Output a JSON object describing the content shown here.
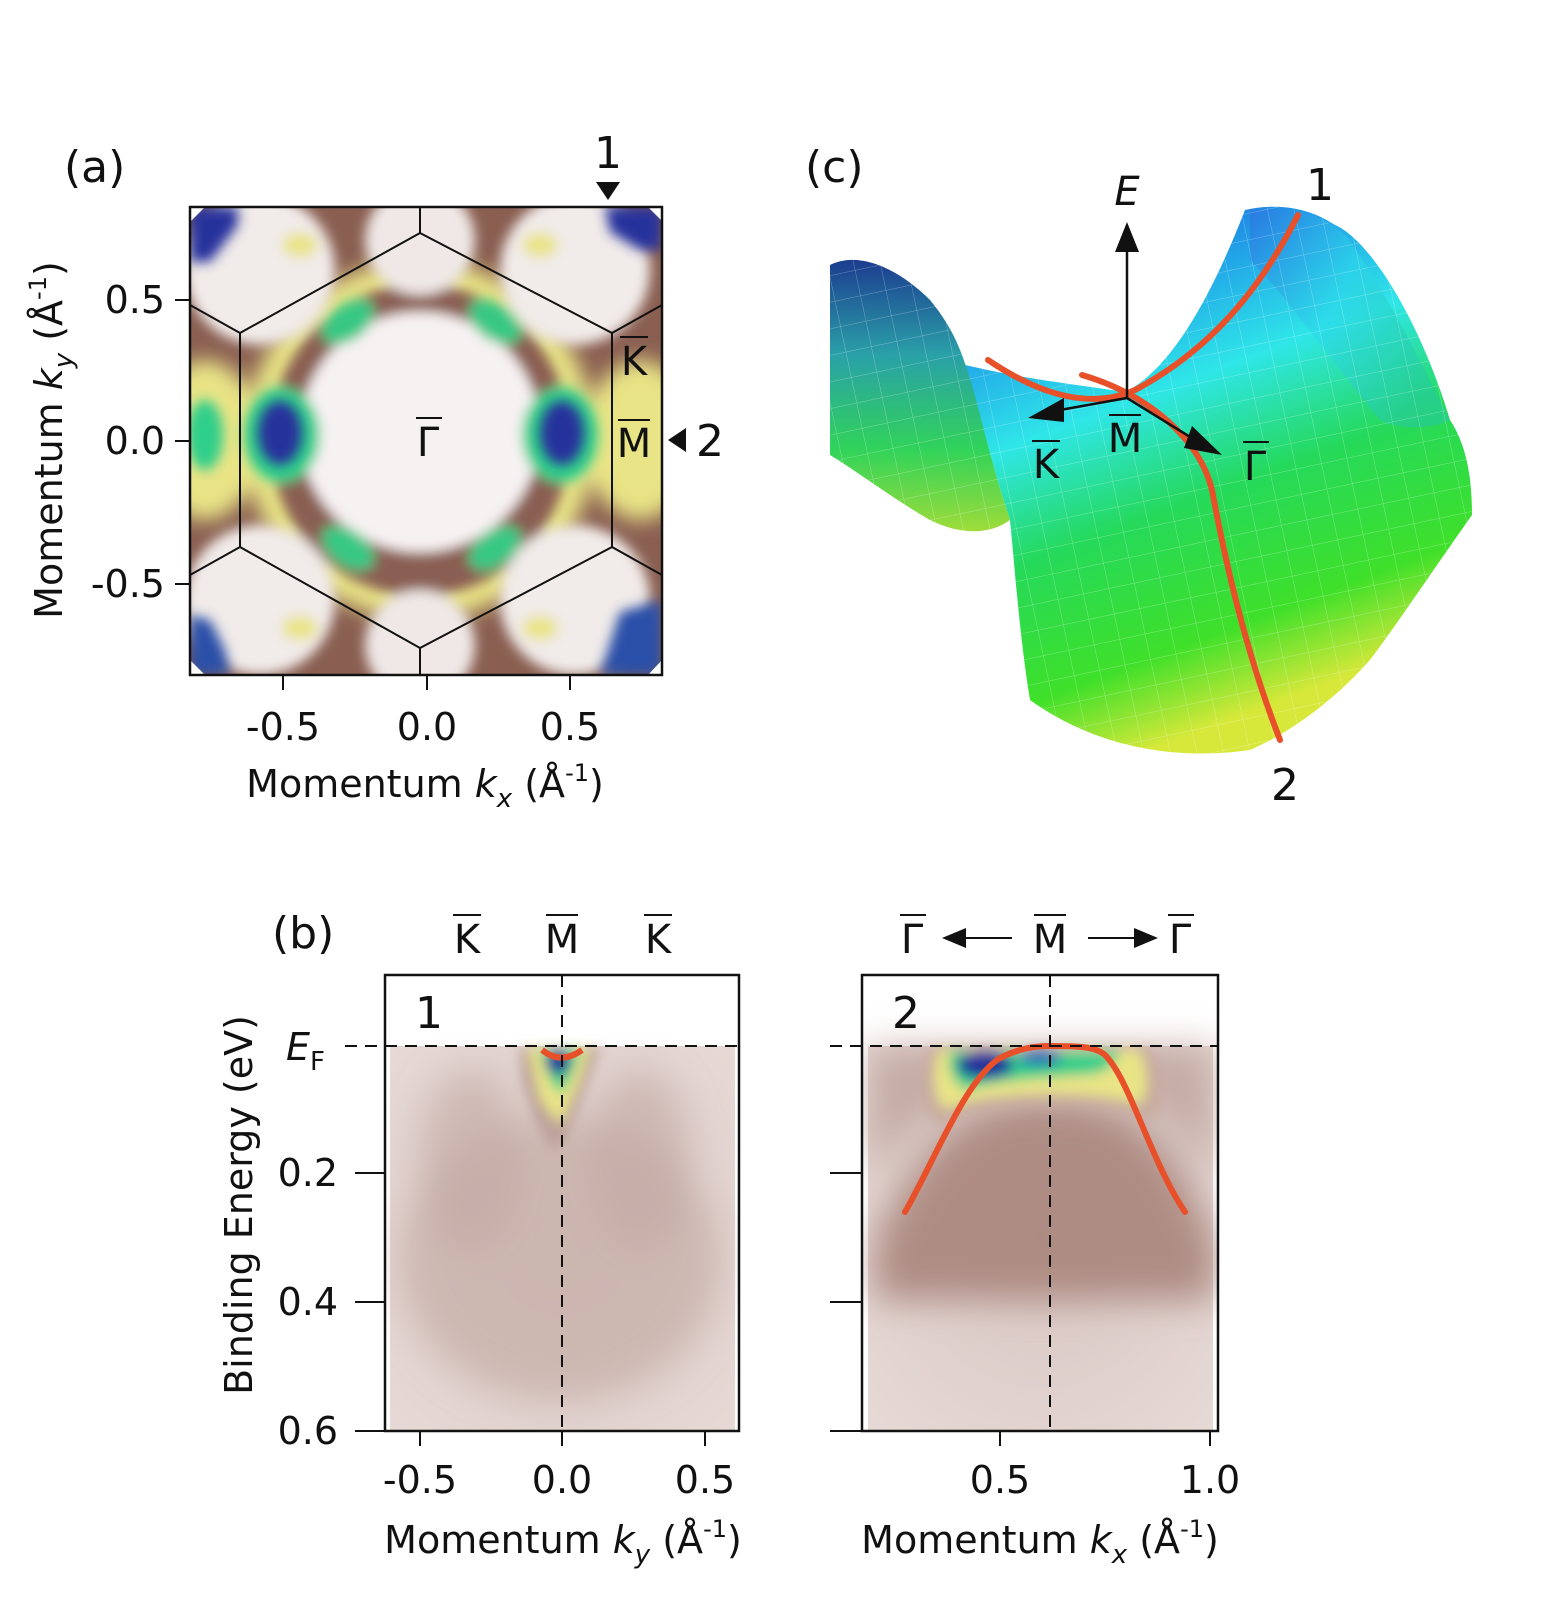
{
  "panel_a": {
    "label": "(a)",
    "xlabel": {
      "pre": "Momentum ",
      "var": "k",
      "sub": "x",
      "post": " (Å",
      "sup": "-1",
      "end": ")"
    },
    "ylabel": {
      "pre": "Momentum ",
      "var": "k",
      "sub": "y",
      "post": " (Å",
      "sup": "-1",
      "end": ")"
    },
    "xticks": [
      "-0.5",
      "0.0",
      "0.5"
    ],
    "yticks": [
      "0.5",
      "0.0",
      "-0.5"
    ],
    "gamma": "Γ",
    "kbar": "K",
    "mbar": "M",
    "cut1_label": "1",
    "cut2_label": "2"
  },
  "panel_b": {
    "label": "(b)",
    "ylabel": "Binding Energy (eV)",
    "ef": {
      "main": "E",
      "sub": "F"
    },
    "yticks": [
      "0.2",
      "0.4",
      "0.6"
    ],
    "left": {
      "index": "1",
      "top_labels": [
        "K",
        "M",
        "K"
      ],
      "xticks": [
        "-0.5",
        "0.0",
        "0.5"
      ],
      "xlabel": {
        "pre": "Momentum ",
        "var": "k",
        "sub": "y",
        "post": " (Å",
        "sup": "-1",
        "end": ")"
      }
    },
    "right": {
      "index": "2",
      "top_labels": [
        "Γ",
        "M",
        "Γ"
      ],
      "xticks": [
        "0.5",
        "1.0"
      ],
      "xlabel": {
        "pre": "Momentum ",
        "var": "k",
        "sub": "x",
        "post": " (Å",
        "sup": "-1",
        "end": ")"
      }
    }
  },
  "panel_c": {
    "label": "(c)",
    "e_axis": "E",
    "curve1_label": "1",
    "curve2_label": "2",
    "kbar": "K",
    "mbar": "M",
    "gamma": "Γ"
  },
  "colors": {
    "band_fit": "#e8502a",
    "map_white": "#f7f2f2",
    "map_brown": "#8a5f52",
    "map_yellow": "#f2ee8a",
    "map_green": "#2fcf8a",
    "map_blue": "#27319c"
  }
}
